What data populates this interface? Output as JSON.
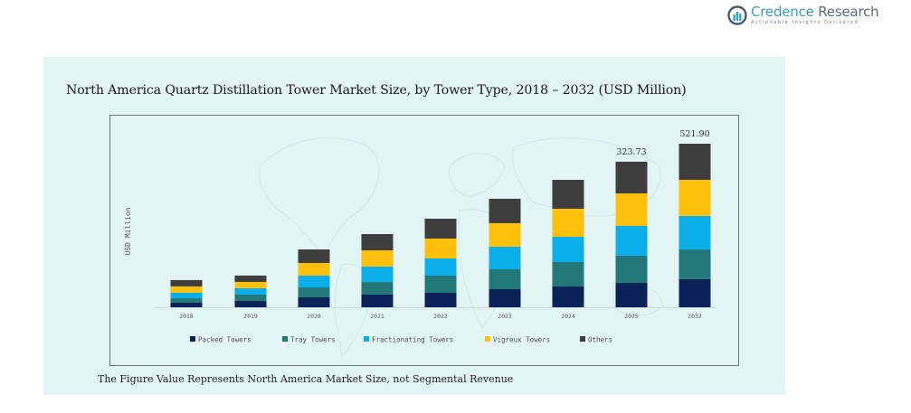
{
  "brand": {
    "name_part1": "Credence",
    "name_part2": " Research",
    "tagline": "Actionable Insights Delivered",
    "icon": "bar-chart-circle-logo-icon"
  },
  "footnote": "The Figure Value Represents North America Market Size, not Segmental Revenue",
  "colors": {
    "panel_background": "#e3f4f5",
    "Packed Towers": "#0b2259",
    "Tray Towers": "#23787a",
    "Fractionating Towers": "#0aafea",
    "Vigreux Towers": "#fcc00a",
    "Others": "#3e3e3e"
  },
  "chart_data": {
    "type": "bar",
    "stacked": true,
    "title": "North America Quartz Distillation Tower Market Size, by Tower Type, 2018 – 2032 (USD Million)",
    "xlabel": "",
    "ylabel": "USD Million",
    "categories": [
      "2018",
      "2019",
      "2020",
      "2021",
      "2022",
      "2023",
      "2024",
      "2025",
      "2032"
    ],
    "series": [
      {
        "name": "Packed Towers",
        "values": [
          10.1,
          14.1,
          22.1,
          28.1,
          32.2,
          40.2,
          46.2,
          54.3,
          89.5
        ]
      },
      {
        "name": "Tray Towers",
        "values": [
          10.1,
          14.1,
          22.1,
          28.1,
          38.2,
          44.2,
          54.3,
          60.3,
          95.2
        ]
      },
      {
        "name": "Fractionating Towers",
        "values": [
          12.1,
          14.1,
          26.1,
          34.2,
          38.2,
          50.3,
          56.3,
          66.3,
          106.6
        ]
      },
      {
        "name": "Vigreux Towers",
        "values": [
          14.1,
          14.1,
          28.1,
          36.2,
          44.2,
          52.3,
          62.3,
          72.3,
          115.3
        ]
      },
      {
        "name": "Others",
        "values": [
          14.1,
          14.1,
          30.2,
          36.2,
          44.2,
          54.3,
          64.3,
          70.53,
          115.3
        ]
      }
    ],
    "totals": [
      60.5,
      70.5,
      128.6,
      162.8,
      197.0,
      241.3,
      283.4,
      323.73,
      521.9
    ],
    "data_labels": [
      {
        "category": "2025",
        "text": "323.73"
      },
      {
        "category": "2032",
        "text": "521.90"
      }
    ],
    "legend": {
      "position": "bottom",
      "entries": [
        "Packed Towers",
        "Tray Towers",
        "Fractionating Towers",
        "Vigreux Towers",
        "Others"
      ]
    },
    "grid": false,
    "y_axis_ticks_visible": false
  }
}
